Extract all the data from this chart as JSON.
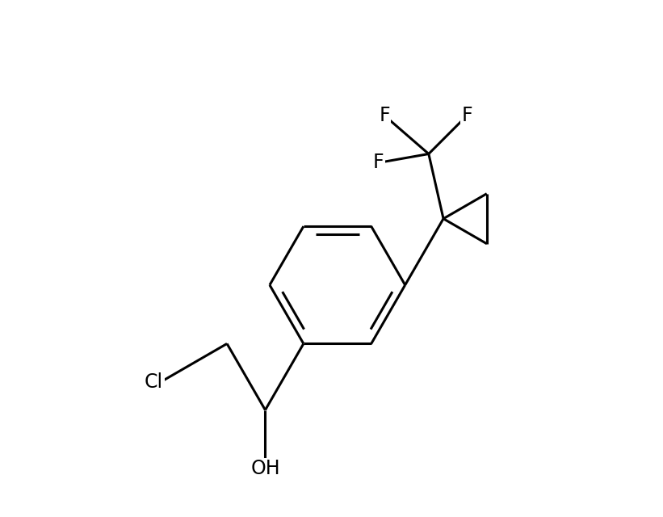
{
  "background_color": "#ffffff",
  "line_color": "#000000",
  "line_width": 2.2,
  "font_size": 17,
  "figsize": [
    8.21,
    6.4
  ],
  "dpi": 100,
  "xlim": [
    -3.5,
    5.0
  ],
  "ylim": [
    -4.2,
    4.5
  ]
}
